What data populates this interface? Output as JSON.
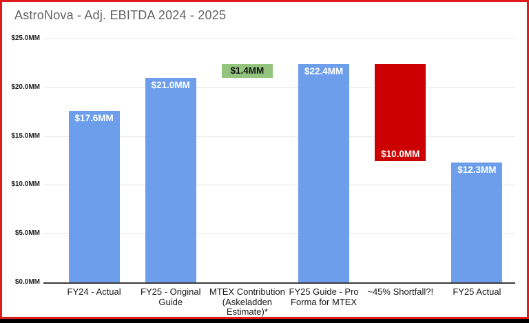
{
  "frame": {
    "border_color": "#e01b1b",
    "background": "#ffffff",
    "bottom_bar_color": "#000000"
  },
  "chart_data": {
    "type": "bar",
    "title": "AstroNova - Adj. EBITDA 2024 - 2025",
    "xlabel": "",
    "ylabel": "",
    "unit": "$MM",
    "ylim": [
      0,
      25
    ],
    "ytick_interval": 5,
    "yticks": [
      {
        "value": 0,
        "label": "$0.0MM"
      },
      {
        "value": 5,
        "label": "$5.0MM"
      },
      {
        "value": 10,
        "label": "$10.0MM"
      },
      {
        "value": 15,
        "label": "$15.0MM"
      },
      {
        "value": 20,
        "label": "$20.0MM"
      },
      {
        "value": 25,
        "label": "$25.0MM"
      }
    ],
    "grid": true,
    "legend": "none",
    "colors": {
      "actual_and_guide": "#6d9eeb",
      "mtex_contribution": "#93c47d",
      "shortfall": "#cc0000"
    },
    "bars": [
      {
        "category_lines": [
          "FY24 - Actual"
        ],
        "start": 0,
        "end": 17.6,
        "value_label": "$17.6MM",
        "label_position": "top",
        "color": "#6d9eeb",
        "label_color": "#ffffff"
      },
      {
        "category_lines": [
          "FY25 - Original",
          "Guide"
        ],
        "start": 0,
        "end": 21.0,
        "value_label": "$21.0MM",
        "label_position": "top",
        "color": "#6d9eeb",
        "label_color": "#ffffff"
      },
      {
        "category_lines": [
          "MTEX Contribution",
          "(Askeladden",
          "Estimate)*"
        ],
        "start": 21.0,
        "end": 22.4,
        "value_label": "$1.4MM",
        "label_position": "center",
        "color": "#93c47d",
        "label_color": "#131313"
      },
      {
        "category_lines": [
          "FY25 Guide - Pro",
          "Forma for MTEX"
        ],
        "start": 0,
        "end": 22.4,
        "value_label": "$22.4MM",
        "label_position": "top",
        "color": "#6d9eeb",
        "label_color": "#ffffff"
      },
      {
        "category_lines": [
          "~45% Shortfall?!"
        ],
        "start": 12.4,
        "end": 22.4,
        "value_label": "$10.0MM",
        "label_position": "bottom",
        "color": "#cc0000",
        "label_color": "#ffffff"
      },
      {
        "category_lines": [
          "FY25 Actual"
        ],
        "start": 0,
        "end": 12.3,
        "value_label": "$12.3MM",
        "label_position": "top",
        "color": "#6d9eeb",
        "label_color": "#ffffff"
      }
    ]
  }
}
